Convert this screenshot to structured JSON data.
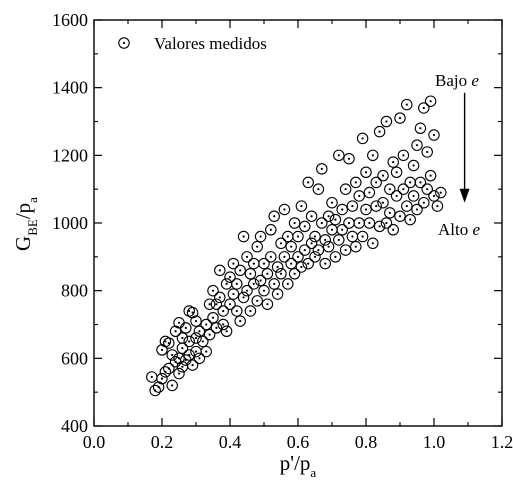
{
  "chart_data": {
    "type": "scatter",
    "title": "",
    "xlabel": {
      "main": "p'/p",
      "sub": "a"
    },
    "ylabel": {
      "main": "G",
      "sub1": "BE",
      "mid": "/p",
      "sub2": "a"
    },
    "xlim": [
      0.0,
      1.2
    ],
    "ylim": [
      400,
      1600
    ],
    "x_ticks": [
      "0.0",
      "0.2",
      "0.4",
      "0.6",
      "0.8",
      "1.0",
      "1.2"
    ],
    "y_ticks": [
      "400",
      "600",
      "800",
      "1000",
      "1200",
      "1400",
      "1600"
    ],
    "grid": false,
    "legend": {
      "position": "top-left",
      "label": "Valores medidos",
      "marker": "open-circle-with-dot"
    },
    "annotations": [
      {
        "text": "Bajo ",
        "var": "e"
      },
      {
        "text": "Alto ",
        "var": "e"
      }
    ],
    "arrow": {
      "from": {
        "x": 1.09,
        "y": 1385
      },
      "to": {
        "x": 1.09,
        "y": 1060
      }
    },
    "series": [
      {
        "marker": "open-circle-with-dot",
        "points": [
          [
            0.17,
            545
          ],
          [
            0.18,
            505
          ],
          [
            0.19,
            515
          ],
          [
            0.2,
            625
          ],
          [
            0.2,
            540
          ],
          [
            0.21,
            650
          ],
          [
            0.21,
            560
          ],
          [
            0.22,
            645
          ],
          [
            0.22,
            570
          ],
          [
            0.23,
            610
          ],
          [
            0.23,
            520
          ],
          [
            0.24,
            590
          ],
          [
            0.24,
            680
          ],
          [
            0.25,
            600
          ],
          [
            0.25,
            705
          ],
          [
            0.25,
            555
          ],
          [
            0.26,
            630
          ],
          [
            0.26,
            575
          ],
          [
            0.26,
            660
          ],
          [
            0.27,
            595
          ],
          [
            0.27,
            690
          ],
          [
            0.28,
            740
          ],
          [
            0.28,
            610
          ],
          [
            0.28,
            650
          ],
          [
            0.29,
            735
          ],
          [
            0.29,
            580
          ],
          [
            0.3,
            620
          ],
          [
            0.3,
            710
          ],
          [
            0.3,
            660
          ],
          [
            0.31,
            600
          ],
          [
            0.31,
            680
          ],
          [
            0.32,
            650
          ],
          [
            0.33,
            700
          ],
          [
            0.33,
            620
          ],
          [
            0.34,
            760
          ],
          [
            0.34,
            670
          ],
          [
            0.35,
            720
          ],
          [
            0.35,
            800
          ],
          [
            0.36,
            690
          ],
          [
            0.36,
            760
          ],
          [
            0.37,
            780
          ],
          [
            0.37,
            860
          ],
          [
            0.38,
            700
          ],
          [
            0.38,
            740
          ],
          [
            0.39,
            820
          ],
          [
            0.39,
            680
          ],
          [
            0.4,
            760
          ],
          [
            0.4,
            840
          ],
          [
            0.41,
            790
          ],
          [
            0.41,
            880
          ],
          [
            0.42,
            740
          ],
          [
            0.42,
            820
          ],
          [
            0.43,
            860
          ],
          [
            0.43,
            710
          ],
          [
            0.44,
            780
          ],
          [
            0.44,
            960
          ],
          [
            0.45,
            800
          ],
          [
            0.45,
            900
          ],
          [
            0.46,
            740
          ],
          [
            0.46,
            850
          ],
          [
            0.47,
            820
          ],
          [
            0.47,
            880
          ],
          [
            0.48,
            770
          ],
          [
            0.48,
            930
          ],
          [
            0.49,
            830
          ],
          [
            0.49,
            960
          ],
          [
            0.5,
            800
          ],
          [
            0.5,
            880
          ],
          [
            0.51,
            760
          ],
          [
            0.51,
            850
          ],
          [
            0.52,
            900
          ],
          [
            0.52,
            980
          ],
          [
            0.53,
            820
          ],
          [
            0.53,
            1020
          ],
          [
            0.54,
            870
          ],
          [
            0.54,
            790
          ],
          [
            0.55,
            940
          ],
          [
            0.55,
            850
          ],
          [
            0.56,
            900
          ],
          [
            0.56,
            1040
          ],
          [
            0.57,
            820
          ],
          [
            0.57,
            960
          ],
          [
            0.58,
            880
          ],
          [
            0.58,
            930
          ],
          [
            0.59,
            850
          ],
          [
            0.59,
            1000
          ],
          [
            0.6,
            900
          ],
          [
            0.6,
            960
          ],
          [
            0.61,
            870
          ],
          [
            0.61,
            1050
          ],
          [
            0.62,
            920
          ],
          [
            0.62,
            990
          ],
          [
            0.63,
            880
          ],
          [
            0.63,
            1120
          ],
          [
            0.64,
            940
          ],
          [
            0.64,
            1020
          ],
          [
            0.65,
            900
          ],
          [
            0.65,
            960
          ],
          [
            0.66,
            1100
          ],
          [
            0.66,
            920
          ],
          [
            0.67,
            1000
          ],
          [
            0.67,
            1160
          ],
          [
            0.68,
            950
          ],
          [
            0.68,
            880
          ],
          [
            0.69,
            1020
          ],
          [
            0.69,
            930
          ],
          [
            0.7,
            980
          ],
          [
            0.7,
            1060
          ],
          [
            0.71,
            900
          ],
          [
            0.71,
            1010
          ],
          [
            0.72,
            950
          ],
          [
            0.72,
            1200
          ],
          [
            0.73,
            1040
          ],
          [
            0.73,
            980
          ],
          [
            0.74,
            1100
          ],
          [
            0.74,
            920
          ],
          [
            0.75,
            1000
          ],
          [
            0.75,
            1190
          ],
          [
            0.76,
            960
          ],
          [
            0.76,
            1050
          ],
          [
            0.77,
            1120
          ],
          [
            0.77,
            930
          ],
          [
            0.78,
            1000
          ],
          [
            0.78,
            1080
          ],
          [
            0.79,
            960
          ],
          [
            0.79,
            1250
          ],
          [
            0.8,
            1040
          ],
          [
            0.8,
            1150
          ],
          [
            0.81,
            1000
          ],
          [
            0.81,
            1090
          ],
          [
            0.82,
            940
          ],
          [
            0.82,
            1200
          ],
          [
            0.83,
            1050
          ],
          [
            0.83,
            1120
          ],
          [
            0.84,
            990
          ],
          [
            0.84,
            1270
          ],
          [
            0.85,
            1060
          ],
          [
            0.85,
            1140
          ],
          [
            0.86,
            1000
          ],
          [
            0.86,
            1300
          ],
          [
            0.87,
            1100
          ],
          [
            0.87,
            1030
          ],
          [
            0.88,
            1180
          ],
          [
            0.88,
            980
          ],
          [
            0.89,
            1080
          ],
          [
            0.89,
            1150
          ],
          [
            0.9,
            1020
          ],
          [
            0.9,
            1310
          ],
          [
            0.91,
            1100
          ],
          [
            0.91,
            1200
          ],
          [
            0.92,
            1050
          ],
          [
            0.92,
            1350
          ],
          [
            0.93,
            1120
          ],
          [
            0.93,
            1010
          ],
          [
            0.94,
            1170
          ],
          [
            0.94,
            1080
          ],
          [
            0.95,
            1230
          ],
          [
            0.95,
            1040
          ],
          [
            0.96,
            1120
          ],
          [
            0.96,
            1280
          ],
          [
            0.97,
            1060
          ],
          [
            0.97,
            1340
          ],
          [
            0.98,
            1100
          ],
          [
            0.98,
            1210
          ],
          [
            0.99,
            1360
          ],
          [
            0.99,
            1140
          ],
          [
            1.0,
            1080
          ],
          [
            1.0,
            1260
          ],
          [
            1.01,
            1050
          ],
          [
            1.02,
            1090
          ]
        ]
      }
    ]
  }
}
